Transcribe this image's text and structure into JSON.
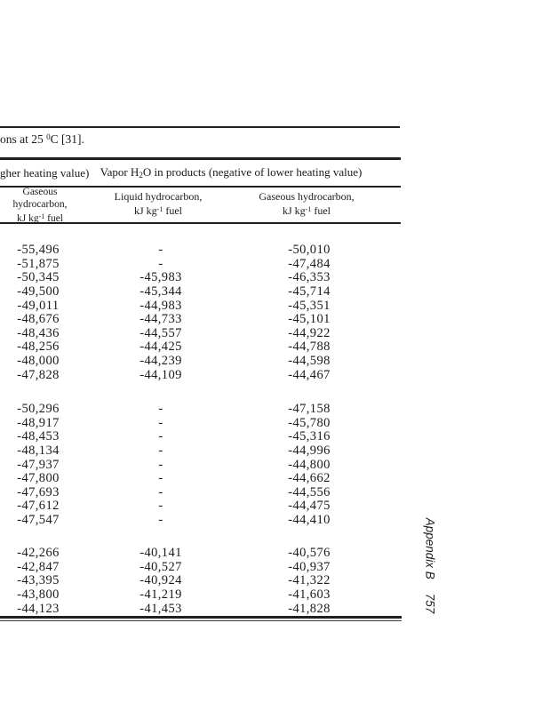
{
  "page": {
    "caption": {
      "prefix": "ons at 25 ",
      "sup": "0",
      "suffix": "C [31]."
    },
    "group_header": {
      "left_fragment": "gher heating value)",
      "right": {
        "prefix": "Vapor H",
        "sub": "2",
        "suffix": "O in products (negative of lower heating value)"
      }
    },
    "column_headers": [
      {
        "lines": [
          "Gaseous",
          "hydrocarbon,"
        ],
        "unit": {
          "prefix": "kJ kg",
          "sup": "-1",
          "suffix": " fuel"
        }
      },
      {
        "lines": [
          "Liquid hydrocarbon,"
        ],
        "unit": {
          "prefix": "kJ kg",
          "sup": "-1",
          "suffix": " fuel"
        }
      },
      {
        "lines": [
          "Gaseous hydrocarbon,"
        ],
        "unit": {
          "prefix": "kJ kg",
          "sup": "-1",
          "suffix": " fuel"
        }
      }
    ],
    "table": {
      "blocks": [
        [
          [
            "-55,496",
            "-",
            "-50,010"
          ],
          [
            "-51,875",
            "-",
            "-47,484"
          ],
          [
            "-50,345",
            "-45,983",
            "-46,353"
          ],
          [
            "-49,500",
            "-45,344",
            "-45,714"
          ],
          [
            "-49,011",
            "-44,983",
            "-45,351"
          ],
          [
            "-48,676",
            "-44,733",
            "-45,101"
          ],
          [
            "-48,436",
            "-44,557",
            "-44,922"
          ],
          [
            "-48,256",
            "-44,425",
            "-44,788"
          ],
          [
            "-48,000",
            "-44,239",
            "-44,598"
          ],
          [
            "-47,828",
            "-44,109",
            "-44,467"
          ]
        ],
        [
          [
            "-50,296",
            "-",
            "-47,158"
          ],
          [
            "-48,917",
            "-",
            "-45,780"
          ],
          [
            "-48,453",
            "-",
            "-45,316"
          ],
          [
            "-48,134",
            "-",
            "-44,996"
          ],
          [
            "-47,937",
            "-",
            "-44,800"
          ],
          [
            "-47,800",
            "-",
            "-44,662"
          ],
          [
            "-47,693",
            "-",
            "-44,556"
          ],
          [
            "-47,612",
            "-",
            "-44,475"
          ],
          [
            "-47,547",
            "-",
            "-44,410"
          ]
        ],
        [
          [
            "-42,266",
            "-40,141",
            "-40,576"
          ],
          [
            "-42,847",
            "-40,527",
            "-40,937"
          ],
          [
            "-43,395",
            "-40,924",
            "-41,322"
          ],
          [
            "-43,800",
            "-41,219",
            "-41,603"
          ],
          [
            "-44,123",
            "-41,453",
            "-41,828"
          ]
        ]
      ]
    },
    "margin": {
      "running_head": "Appendix B",
      "page_number": "757"
    },
    "colors": {
      "ink": "#1a1a1a",
      "paper": "#ffffff"
    }
  }
}
